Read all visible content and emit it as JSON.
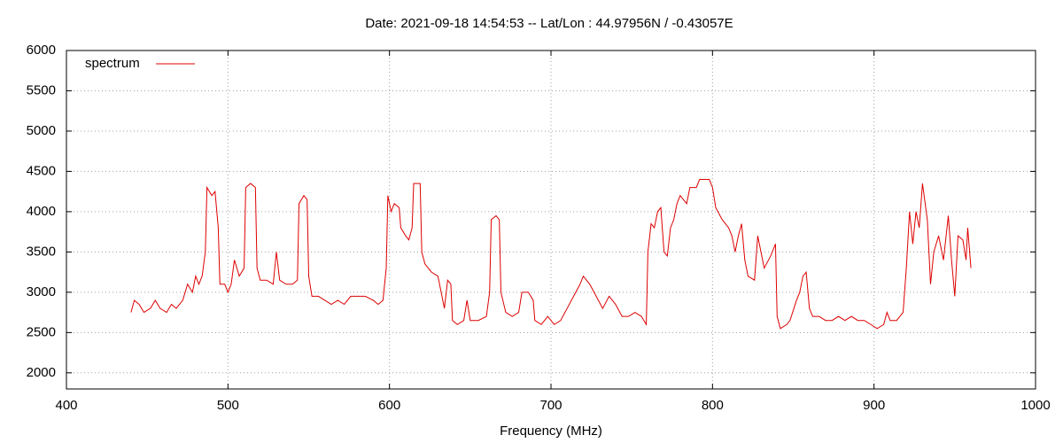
{
  "chart_data": {
    "type": "line",
    "title": "Date: 2021-09-18 14:54:53  --  Lat/Lon : 44.97956N / -0.43057E",
    "xlabel": "Frequency (MHz)",
    "xlim": [
      400,
      1000
    ],
    "xticks": [
      400,
      500,
      600,
      700,
      800,
      900,
      1000
    ],
    "ylim": [
      1800,
      6000
    ],
    "yticks": [
      2000,
      2500,
      3000,
      3500,
      4000,
      4500,
      5000,
      5500,
      6000
    ],
    "grid": true,
    "legend": "top-left",
    "x": [
      440,
      442,
      445,
      448,
      452,
      455,
      458,
      462,
      465,
      468,
      472,
      475,
      478,
      480,
      482,
      484,
      486,
      487,
      490,
      492,
      494,
      495,
      498,
      500,
      502,
      504,
      507,
      510,
      511,
      514,
      517,
      518,
      520,
      524,
      528,
      530,
      532,
      536,
      540,
      543,
      544,
      547,
      549,
      550,
      552,
      556,
      560,
      564,
      568,
      572,
      576,
      580,
      585,
      590,
      593,
      596,
      598,
      599,
      601,
      603,
      606,
      607,
      610,
      612,
      614,
      615,
      619,
      620,
      622,
      626,
      630,
      632,
      634,
      636,
      638,
      639,
      642,
      646,
      648,
      650,
      655,
      660,
      662,
      663,
      666,
      668,
      669,
      672,
      676,
      680,
      682,
      686,
      689,
      690,
      694,
      698,
      702,
      706,
      710,
      714,
      718,
      720,
      724,
      728,
      732,
      736,
      740,
      744,
      748,
      752,
      756,
      759,
      760,
      762,
      764,
      766,
      768,
      770,
      772,
      774,
      776,
      778,
      780,
      782,
      784,
      786,
      790,
      792,
      798,
      800,
      802,
      806,
      810,
      812,
      814,
      816,
      818,
      820,
      822,
      826,
      828,
      830,
      832,
      836,
      839,
      840,
      842,
      846,
      848,
      852,
      854,
      856,
      858,
      860,
      862,
      866,
      870,
      874,
      878,
      882,
      886,
      890,
      894,
      898,
      902,
      906,
      908,
      910,
      914,
      918,
      920,
      922,
      924,
      926,
      928,
      930,
      933,
      935,
      937,
      940,
      943,
      946,
      948,
      950,
      952,
      955,
      957,
      958,
      960
    ],
    "series": [
      {
        "name": "spectrum",
        "color": "#dd0000",
        "values": [
          2750,
          2900,
          2850,
          2750,
          2800,
          2900,
          2800,
          2750,
          2850,
          2800,
          2900,
          3100,
          3000,
          3200,
          3100,
          3200,
          3500,
          4300,
          4200,
          4250,
          3800,
          3100,
          3100,
          3000,
          3100,
          3400,
          3200,
          3300,
          4300,
          4350,
          4300,
          3300,
          3150,
          3150,
          3100,
          3500,
          3150,
          3100,
          3100,
          3150,
          4100,
          4200,
          4150,
          3200,
          2950,
          2950,
          2900,
          2850,
          2900,
          2850,
          2950,
          2950,
          2950,
          2900,
          2850,
          2900,
          3300,
          4200,
          4000,
          4100,
          4050,
          3800,
          3700,
          3650,
          3800,
          4350,
          4350,
          3500,
          3350,
          3250,
          3200,
          3000,
          2800,
          3150,
          3100,
          2650,
          2600,
          2650,
          2900,
          2650,
          2650,
          2700,
          3000,
          3900,
          3950,
          3900,
          3000,
          2750,
          2700,
          2750,
          3000,
          3000,
          2900,
          2650,
          2600,
          2700,
          2600,
          2650,
          2800,
          2950,
          3100,
          3200,
          3100,
          2950,
          2800,
          2950,
          2850,
          2700,
          2700,
          2750,
          2700,
          2600,
          3500,
          3850,
          3800,
          4000,
          4050,
          3500,
          3450,
          3800,
          3900,
          4100,
          4200,
          4150,
          4100,
          4300,
          4300,
          4400,
          4400,
          4300,
          4050,
          3900,
          3800,
          3700,
          3500,
          3700,
          3850,
          3400,
          3200,
          3150,
          3700,
          3500,
          3300,
          3450,
          3600,
          2700,
          2550,
          2600,
          2650,
          2900,
          3000,
          3200,
          3250,
          2800,
          2700,
          2700,
          2650,
          2650,
          2700,
          2650,
          2700,
          2650,
          2650,
          2600,
          2550,
          2600,
          2750,
          2650,
          2650,
          2750,
          3300,
          4000,
          3600,
          4000,
          3800,
          4350,
          3900,
          3100,
          3500,
          3700,
          3400,
          3950,
          3400,
          2950,
          3700,
          3650,
          3400,
          3800,
          3300
        ]
      }
    ]
  }
}
